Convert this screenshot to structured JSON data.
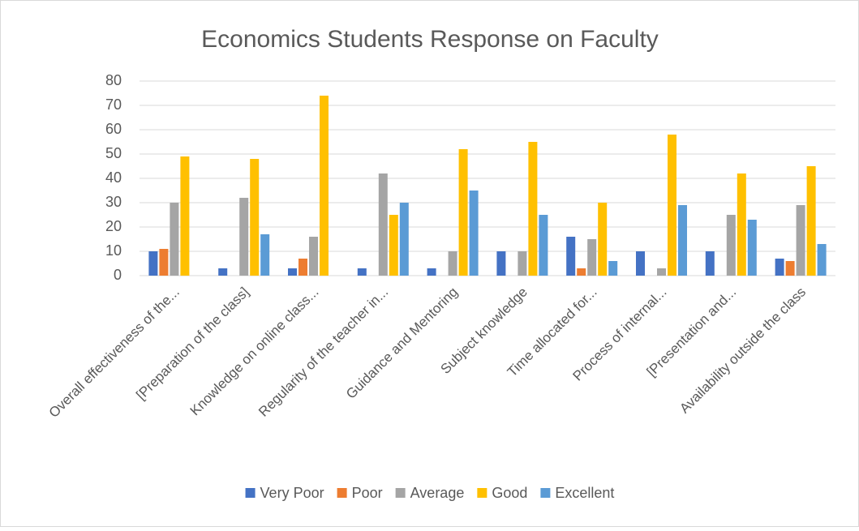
{
  "chart_data": {
    "type": "bar",
    "title": "Economics Students Response on Faculty",
    "categories": [
      "Overall effectiveness of the...",
      "[Preparation of the class]",
      "Knowledge on online class...",
      "Regularity of the teacher in...",
      "Guidance and Mentoring",
      "Subject knowledge",
      "Time allocated for...",
      "Process of internal...",
      "[Presentation and...",
      "Availability outside the class"
    ],
    "series": [
      {
        "name": "Very Poor",
        "color": "#4472c4",
        "values": [
          10,
          3,
          3,
          3,
          3,
          10,
          16,
          10,
          10,
          7
        ]
      },
      {
        "name": "Poor",
        "color": "#ed7d31",
        "values": [
          11,
          0,
          7,
          0,
          0,
          0,
          3,
          0,
          0,
          6
        ]
      },
      {
        "name": "Average",
        "color": "#a5a5a5",
        "values": [
          30,
          32,
          16,
          42,
          10,
          10,
          15,
          3,
          25,
          29
        ]
      },
      {
        "name": "Good",
        "color": "#ffc000",
        "values": [
          49,
          48,
          74,
          25,
          52,
          55,
          30,
          58,
          42,
          45
        ]
      },
      {
        "name": "Excellent",
        "color": "#5b9bd5",
        "values": [
          0,
          17,
          0,
          30,
          35,
          25,
          6,
          29,
          23,
          13
        ]
      }
    ],
    "ylim": [
      0,
      80
    ],
    "yticks": [
      0,
      10,
      20,
      30,
      40,
      50,
      60,
      70,
      80
    ],
    "grid": true,
    "legend": "bottom"
  }
}
